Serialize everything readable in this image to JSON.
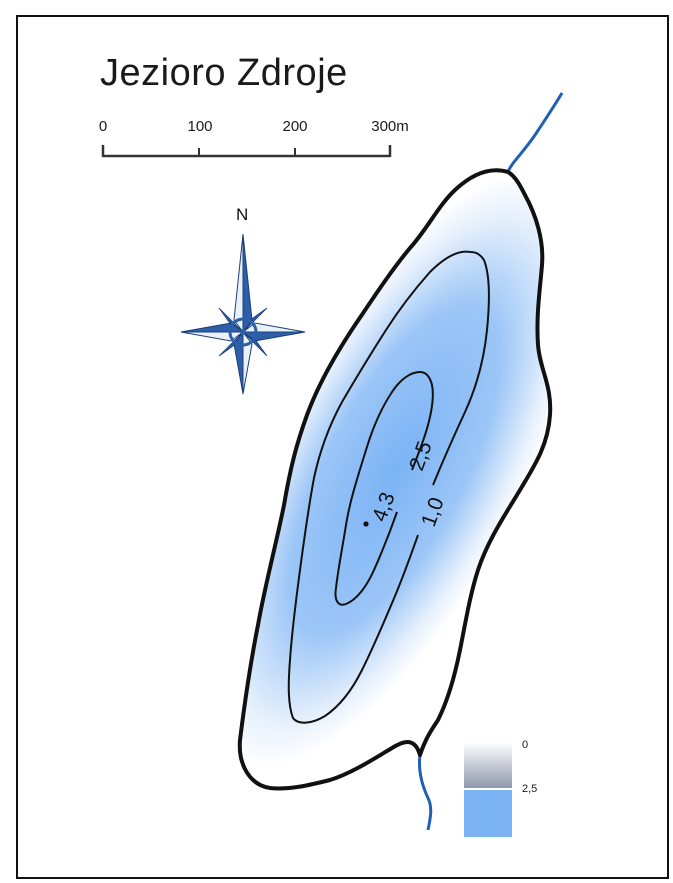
{
  "map": {
    "title": "Jezioro Zdroje",
    "scale_bar": {
      "ticks": [
        "0",
        "100",
        "200",
        "300m"
      ]
    },
    "north_arrow": {
      "letter": "N",
      "icon": "compass-rose-icon"
    },
    "contours": [
      {
        "label": "1,0"
      },
      {
        "label": "2,5"
      }
    ],
    "deepest_point": {
      "label": "4,3"
    },
    "legend": {
      "top_label": "0",
      "bottom_label": "2,5"
    },
    "colors": {
      "shoreline": "#111111",
      "river": "#1f5fb5",
      "deep_water": "#7bb3f5",
      "compass": "#2d5fa8"
    }
  }
}
